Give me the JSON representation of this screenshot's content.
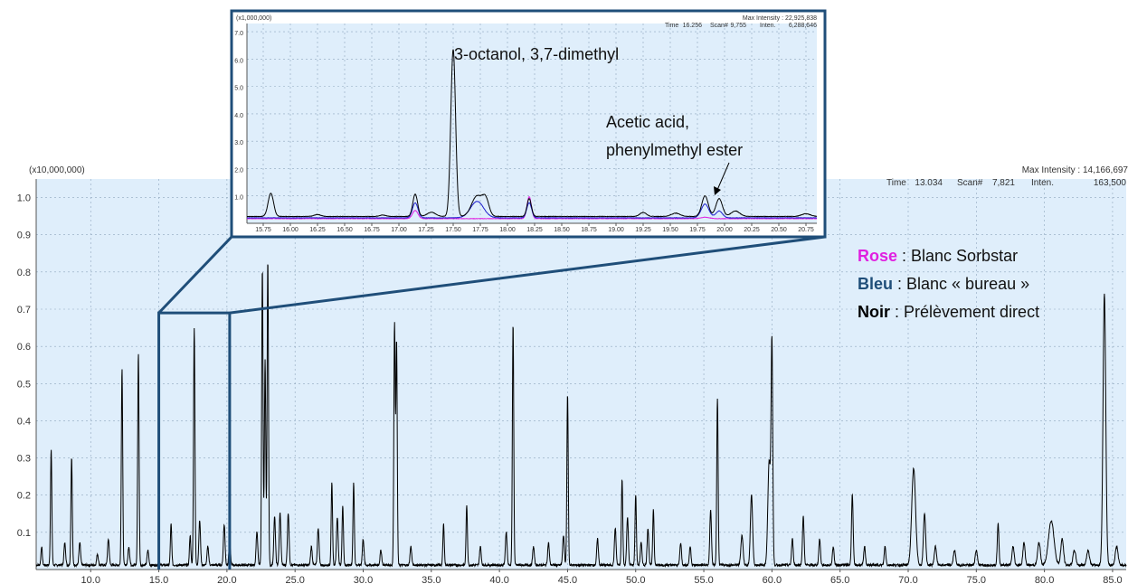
{
  "colors": {
    "plot_bg": "#dfeefb",
    "grid": "#8fa6bd",
    "chromatogram": "#000000",
    "frame": "#1f4e79",
    "rose": "#e020e0",
    "bleu": "#1f4e79",
    "bleu_trace": "#2020cc",
    "noir": "#000000"
  },
  "main": {
    "scale_label": "(x10,000,000)",
    "max_intensity_label": "Max Intensity : 14,166,697",
    "info_time_label": "Time",
    "info_time": "13.034",
    "info_scan_label": "Scan#",
    "info_scan": "7,821",
    "info_inten_label": "Inten.",
    "info_inten": "163,500"
  },
  "inset": {
    "scale_label": "(x1,000,000)",
    "max_intensity_label": "Max Intensity : 22,925,838",
    "info_time_label": "Time",
    "info_time": "16.256",
    "info_scan_label": "Scan#",
    "info_scan": "9,755",
    "info_inten_label": "Inten.",
    "info_inten": "6,288,646"
  },
  "annotations": {
    "peak1": "3-octanol, 3,7-dimethyl",
    "peak2_line1": "Acetic acid,",
    "peak2_line2": "phenylmethyl ester"
  },
  "legend": [
    {
      "key": "Rose",
      "text": " : Blanc Sorbstar",
      "color_ref": "rose"
    },
    {
      "key": "Bleu",
      "text": " : Blanc « bureau »",
      "color_ref": "bleu"
    },
    {
      "key": "Noir",
      "text": " : Prélèvement direct",
      "color_ref": "noir"
    }
  ],
  "chart_data": [
    {
      "type": "line",
      "title": "",
      "xlabel": "",
      "ylabel": "",
      "xlim": [
        6.0,
        86.0
      ],
      "ylim": [
        0.0,
        1.05
      ],
      "x_ticks": [
        10.0,
        15.0,
        20.0,
        25.0,
        30.0,
        35.0,
        40.0,
        45.0,
        50.0,
        55.0,
        60.0,
        65.0,
        70.0,
        75.0,
        80.0,
        85.0
      ],
      "x_tick_labels": [
        "10.0",
        "15.0",
        "20.0",
        "25.0",
        "30.0",
        "35.0",
        "40.0",
        "45.0",
        "50.0",
        "55.0",
        "60.0",
        "65.0",
        "70.0",
        "75.0",
        "80.0",
        "85.0"
      ],
      "y_ticks": [
        0.1,
        0.2,
        0.3,
        0.4,
        0.5,
        0.6,
        0.7,
        0.8,
        0.9,
        1.0
      ],
      "y_tick_labels": [
        "0.1",
        "0.2",
        "0.3",
        "0.4",
        "0.5",
        "0.6",
        "0.7",
        "0.8",
        "0.9",
        "1.0"
      ],
      "grid": true,
      "baseline": 0.012,
      "series": [
        {
          "peaks": [
            {
              "x": 6.4,
              "h": 0.05,
              "w": 0.05
            },
            {
              "x": 7.1,
              "h": 0.31,
              "w": 0.05
            },
            {
              "x": 8.1,
              "h": 0.06,
              "w": 0.06
            },
            {
              "x": 8.6,
              "h": 0.29,
              "w": 0.05
            },
            {
              "x": 9.2,
              "h": 0.06,
              "w": 0.06
            },
            {
              "x": 10.5,
              "h": 0.03,
              "w": 0.06
            },
            {
              "x": 11.3,
              "h": 0.07,
              "w": 0.06
            },
            {
              "x": 12.3,
              "h": 0.53,
              "w": 0.05
            },
            {
              "x": 12.8,
              "h": 0.05,
              "w": 0.06
            },
            {
              "x": 13.5,
              "h": 0.57,
              "w": 0.05
            },
            {
              "x": 14.2,
              "h": 0.04,
              "w": 0.06
            },
            {
              "x": 15.9,
              "h": 0.11,
              "w": 0.05
            },
            {
              "x": 17.3,
              "h": 0.08,
              "w": 0.05
            },
            {
              "x": 17.6,
              "h": 0.64,
              "w": 0.05
            },
            {
              "x": 18.0,
              "h": 0.12,
              "w": 0.06
            },
            {
              "x": 18.6,
              "h": 0.05,
              "w": 0.06
            },
            {
              "x": 19.8,
              "h": 0.11,
              "w": 0.06
            },
            {
              "x": 20.2,
              "h": 0.06,
              "w": 0.06
            },
            {
              "x": 22.2,
              "h": 0.09,
              "w": 0.06
            },
            {
              "x": 22.6,
              "h": 0.8,
              "w": 0.05
            },
            {
              "x": 22.8,
              "h": 0.55,
              "w": 0.05
            },
            {
              "x": 23.0,
              "h": 0.82,
              "w": 0.05
            },
            {
              "x": 23.5,
              "h": 0.13,
              "w": 0.06
            },
            {
              "x": 23.9,
              "h": 0.14,
              "w": 0.06
            },
            {
              "x": 24.5,
              "h": 0.14,
              "w": 0.06
            },
            {
              "x": 26.2,
              "h": 0.05,
              "w": 0.06
            },
            {
              "x": 26.7,
              "h": 0.1,
              "w": 0.06
            },
            {
              "x": 27.7,
              "h": 0.22,
              "w": 0.05
            },
            {
              "x": 28.1,
              "h": 0.13,
              "w": 0.06
            },
            {
              "x": 28.5,
              "h": 0.16,
              "w": 0.05
            },
            {
              "x": 29.3,
              "h": 0.22,
              "w": 0.05
            },
            {
              "x": 30.0,
              "h": 0.07,
              "w": 0.06
            },
            {
              "x": 31.3,
              "h": 0.04,
              "w": 0.06
            },
            {
              "x": 32.3,
              "h": 0.65,
              "w": 0.05
            },
            {
              "x": 32.45,
              "h": 0.6,
              "w": 0.05
            },
            {
              "x": 33.5,
              "h": 0.05,
              "w": 0.06
            },
            {
              "x": 35.9,
              "h": 0.11,
              "w": 0.05
            },
            {
              "x": 37.6,
              "h": 0.16,
              "w": 0.05
            },
            {
              "x": 38.6,
              "h": 0.05,
              "w": 0.06
            },
            {
              "x": 40.5,
              "h": 0.09,
              "w": 0.06
            },
            {
              "x": 41.0,
              "h": 0.65,
              "w": 0.05
            },
            {
              "x": 42.5,
              "h": 0.05,
              "w": 0.06
            },
            {
              "x": 43.6,
              "h": 0.06,
              "w": 0.06
            },
            {
              "x": 44.7,
              "h": 0.08,
              "w": 0.06
            },
            {
              "x": 45.0,
              "h": 0.46,
              "w": 0.05
            },
            {
              "x": 47.2,
              "h": 0.07,
              "w": 0.06
            },
            {
              "x": 48.5,
              "h": 0.1,
              "w": 0.06
            },
            {
              "x": 49.0,
              "h": 0.23,
              "w": 0.05
            },
            {
              "x": 49.4,
              "h": 0.13,
              "w": 0.06
            },
            {
              "x": 50.0,
              "h": 0.19,
              "w": 0.05
            },
            {
              "x": 50.4,
              "h": 0.06,
              "w": 0.06
            },
            {
              "x": 50.9,
              "h": 0.1,
              "w": 0.06
            },
            {
              "x": 51.3,
              "h": 0.15,
              "w": 0.05
            },
            {
              "x": 53.3,
              "h": 0.06,
              "w": 0.06
            },
            {
              "x": 54.0,
              "h": 0.05,
              "w": 0.06
            },
            {
              "x": 55.5,
              "h": 0.15,
              "w": 0.06
            },
            {
              "x": 56.0,
              "h": 0.45,
              "w": 0.05
            },
            {
              "x": 57.8,
              "h": 0.08,
              "w": 0.08
            },
            {
              "x": 58.5,
              "h": 0.19,
              "w": 0.08
            },
            {
              "x": 59.8,
              "h": 0.28,
              "w": 0.1
            },
            {
              "x": 60.0,
              "h": 0.58,
              "w": 0.06
            },
            {
              "x": 61.5,
              "h": 0.07,
              "w": 0.06
            },
            {
              "x": 62.3,
              "h": 0.13,
              "w": 0.06
            },
            {
              "x": 63.5,
              "h": 0.07,
              "w": 0.06
            },
            {
              "x": 64.5,
              "h": 0.05,
              "w": 0.06
            },
            {
              "x": 65.9,
              "h": 0.19,
              "w": 0.06
            },
            {
              "x": 66.8,
              "h": 0.05,
              "w": 0.06
            },
            {
              "x": 68.3,
              "h": 0.05,
              "w": 0.06
            },
            {
              "x": 70.4,
              "h": 0.26,
              "w": 0.14
            },
            {
              "x": 71.2,
              "h": 0.14,
              "w": 0.08
            },
            {
              "x": 72.0,
              "h": 0.05,
              "w": 0.08
            },
            {
              "x": 73.4,
              "h": 0.04,
              "w": 0.08
            },
            {
              "x": 75.0,
              "h": 0.04,
              "w": 0.08
            },
            {
              "x": 76.6,
              "h": 0.11,
              "w": 0.06
            },
            {
              "x": 77.7,
              "h": 0.05,
              "w": 0.08
            },
            {
              "x": 78.5,
              "h": 0.06,
              "w": 0.08
            },
            {
              "x": 79.6,
              "h": 0.06,
              "w": 0.1
            },
            {
              "x": 80.5,
              "h": 0.12,
              "w": 0.2
            },
            {
              "x": 81.3,
              "h": 0.07,
              "w": 0.1
            },
            {
              "x": 82.2,
              "h": 0.04,
              "w": 0.1
            },
            {
              "x": 83.2,
              "h": 0.04,
              "w": 0.1
            },
            {
              "x": 84.4,
              "h": 0.73,
              "w": 0.1
            },
            {
              "x": 85.3,
              "h": 0.05,
              "w": 0.1
            }
          ]
        }
      ]
    },
    {
      "type": "line",
      "title": "",
      "xlabel": "",
      "ylabel": "",
      "xlim": [
        15.6,
        20.85
      ],
      "ylim": [
        0.0,
        7.3
      ],
      "x_ticks": [
        15.75,
        16.0,
        16.25,
        16.5,
        16.75,
        17.0,
        17.25,
        17.5,
        17.75,
        18.0,
        18.25,
        18.5,
        18.75,
        19.0,
        19.25,
        19.5,
        19.75,
        20.0,
        20.25,
        20.5,
        20.75
      ],
      "x_tick_labels": [
        "15.75",
        "16.00",
        "16.25",
        "16.50",
        "16.75",
        "17.00",
        "17.25",
        "17.50",
        "17.75",
        "18.00",
        "18.25",
        "18.50",
        "18.75",
        "19.00",
        "19.25",
        "19.50",
        "19.75",
        "20.00",
        "20.25",
        "20.50",
        "20.75"
      ],
      "y_ticks": [
        1.0,
        2.0,
        3.0,
        4.0,
        5.0,
        6.0,
        7.0
      ],
      "y_tick_labels": [
        "1.0",
        "2.0",
        "3.0",
        "4.0",
        "5.0",
        "6.0",
        "7.0"
      ],
      "grid": true,
      "series": [
        {
          "color_ref": "noir",
          "baseline": 0.25,
          "peaks": [
            {
              "x": 15.82,
              "h": 0.85,
              "w": 0.025
            },
            {
              "x": 16.25,
              "h": 0.07,
              "w": 0.03
            },
            {
              "x": 16.85,
              "h": 0.05,
              "w": 0.03
            },
            {
              "x": 17.15,
              "h": 0.82,
              "w": 0.022
            },
            {
              "x": 17.3,
              "h": 0.15,
              "w": 0.04
            },
            {
              "x": 17.5,
              "h": 6.1,
              "w": 0.022
            },
            {
              "x": 17.72,
              "h": 0.75,
              "w": 0.05
            },
            {
              "x": 17.8,
              "h": 0.55,
              "w": 0.03
            },
            {
              "x": 18.2,
              "h": 0.65,
              "w": 0.02
            },
            {
              "x": 19.25,
              "h": 0.15,
              "w": 0.03
            },
            {
              "x": 19.55,
              "h": 0.12,
              "w": 0.04
            },
            {
              "x": 19.82,
              "h": 0.75,
              "w": 0.03
            },
            {
              "x": 19.95,
              "h": 0.65,
              "w": 0.03
            },
            {
              "x": 20.1,
              "h": 0.2,
              "w": 0.04
            },
            {
              "x": 20.75,
              "h": 0.1,
              "w": 0.04
            }
          ]
        },
        {
          "color_ref": "bleu_trace",
          "baseline": 0.2,
          "peaks": [
            {
              "x": 17.15,
              "h": 0.55,
              "w": 0.025
            },
            {
              "x": 17.72,
              "h": 0.6,
              "w": 0.06
            },
            {
              "x": 18.2,
              "h": 0.55,
              "w": 0.022
            },
            {
              "x": 19.82,
              "h": 0.5,
              "w": 0.035
            },
            {
              "x": 19.95,
              "h": 0.25,
              "w": 0.03
            }
          ]
        },
        {
          "color_ref": "rose",
          "baseline": 0.17,
          "peaks": [
            {
              "x": 17.15,
              "h": 0.3,
              "w": 0.025
            },
            {
              "x": 18.2,
              "h": 0.8,
              "w": 0.02
            },
            {
              "x": 19.82,
              "h": 0.05,
              "w": 0.04
            }
          ]
        }
      ]
    }
  ]
}
